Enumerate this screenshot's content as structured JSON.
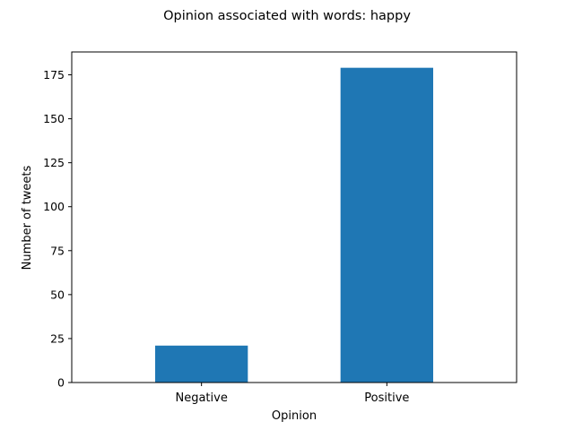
{
  "chart_data": {
    "type": "bar",
    "title": "Opinion associated with words: happy",
    "xlabel": "Opinion",
    "ylabel": "Number of tweets",
    "categories": [
      "Negative",
      "Positive"
    ],
    "values": [
      21,
      179
    ],
    "ylim": [
      0,
      188
    ],
    "yticks": [
      0,
      25,
      50,
      75,
      100,
      125,
      150,
      175
    ],
    "bar_color": "#1f77b4",
    "grid": false,
    "legend": "none"
  }
}
